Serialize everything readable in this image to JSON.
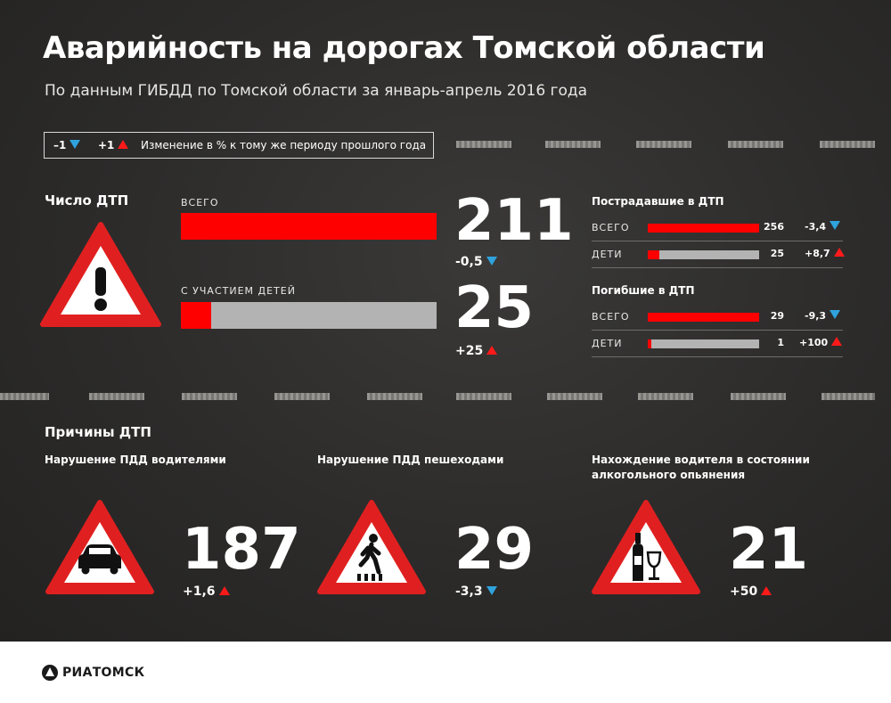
{
  "header": {
    "title": "Аварийность на дорогах Томской области",
    "subtitle": "По данным ГИБДД по Томской области за январь-апрель 2016 года"
  },
  "legend": {
    "negative": "–1",
    "positive": "+1",
    "text": "Изменение в % к тому же периоду прошлого года"
  },
  "accidents": {
    "title": "Число ДТП",
    "total": {
      "label": "ВСЕГО",
      "value": "211",
      "change": "-0,5",
      "direction": "down",
      "bar_fill": 1.0
    },
    "children": {
      "label": "С УЧАСТИЕМ ДЕТЕЙ",
      "value": "25",
      "change": "+25",
      "direction": "up",
      "bar_fill": 0.12
    }
  },
  "injured": {
    "title": "Пострадавшие в ДТП",
    "rows": [
      {
        "label": "ВСЕГО",
        "value": "256",
        "change": "-3,4",
        "direction": "down",
        "bar_fill": 1.0
      },
      {
        "label": "ДЕТИ",
        "value": "25",
        "change": "+8,7",
        "direction": "up",
        "bar_fill": 0.1
      }
    ]
  },
  "killed": {
    "title": "Погибшие в ДТП",
    "rows": [
      {
        "label": "ВСЕГО",
        "value": "29",
        "change": "-9,3",
        "direction": "down",
        "bar_fill": 1.0
      },
      {
        "label": "ДЕТИ",
        "value": "1",
        "change": "+100",
        "direction": "up",
        "bar_fill": 0.035
      }
    ]
  },
  "causes": {
    "title": "Причины ДТП",
    "items": [
      {
        "label": "Нарушение ПДД водителями",
        "value": "187",
        "change": "+1,6",
        "direction": "up",
        "icon": "car-icon"
      },
      {
        "label": "Нарушение ПДД пешеходами",
        "value": "29",
        "change": "-3,3",
        "direction": "down",
        "icon": "pedestrian-icon"
      },
      {
        "label_line1": "Нахождение водителя в состоянии",
        "label_line2": "алкогольного опьянения",
        "value": "21",
        "change": "+50",
        "direction": "up",
        "icon": "bottle-glass-icon"
      }
    ]
  },
  "footer": {
    "logo": "РИАТОМСК"
  },
  "colors": {
    "accent_red": "#ff0000",
    "down_blue": "#2fa3dd",
    "bar_gray": "#b3b3b3",
    "sign_red": "#e02020"
  }
}
